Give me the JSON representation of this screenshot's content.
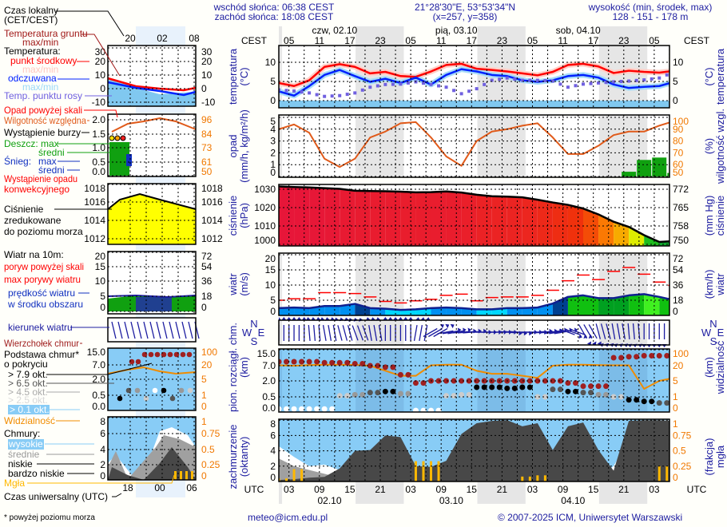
{
  "header": {
    "sunrise": "wschód słońca: 06:38 CEST",
    "sunset": "zachód słońca: 18:08 CEST",
    "coordinates": "21°28'30\"E, 53°53'34\"N",
    "grid_point": "(x=257,  y=358)",
    "elevation_label": "wysokość (min, środek, max)",
    "elevation_values": "128 - 151 - 178 m"
  },
  "time_axis": {
    "local_label": "CEST",
    "utc_label": "UTC",
    "local_hours": [
      "05",
      "11",
      "17",
      "23",
      "05",
      "11",
      "17",
      "23",
      "05",
      "11",
      "17",
      "23",
      "05"
    ],
    "local_days": [
      "czw, 02.10",
      "pią, 03.10",
      "sob, 04.10"
    ],
    "utc_hours": [
      "03",
      "09",
      "15",
      "21",
      "03",
      "09",
      "15",
      "21",
      "03",
      "09",
      "15",
      "21",
      "03"
    ],
    "utc_days": [
      "02.10",
      "03.10",
      "04.10"
    ]
  },
  "axis_titles": {
    "temp_left": [
      "temperatura",
      "(°C)"
    ],
    "temp_right": [
      "(°C)",
      "temperatura"
    ],
    "precip_left": [
      "opad",
      "(mm/h, kg/m²/h)"
    ],
    "precip_right": [
      "(%)",
      "wilgotność wzgl."
    ],
    "pressure_left": [
      "ciśnienie",
      "(hPa)"
    ],
    "pressure_right": [
      "(mm Hg)",
      "ciśnienie"
    ],
    "wind_left": [
      "wiatr",
      "(m/s)"
    ],
    "wind_right": [
      "(km/h)",
      "wiatr"
    ],
    "cloudbase_left": [
      "pion. rozciągł. chm.",
      "(km)"
    ],
    "cloudbase_right": [
      "(km)",
      "widzialność"
    ],
    "cloud_left": [
      "zachmurzenie",
      "(oktanty)"
    ],
    "cloud_right": [
      "(frakcja)",
      "mgła"
    ],
    "compass": {
      "n": "N",
      "w": "W",
      "e": "E",
      "s": "S"
    }
  },
  "ticks": {
    "temperature": {
      "left": [
        "10",
        "5",
        "0"
      ],
      "right": [
        "10",
        "5",
        "0"
      ]
    },
    "precip": {
      "left": [
        "5",
        "4",
        "3",
        "2",
        "1",
        "0"
      ],
      "right": [
        "100",
        "90",
        "80",
        "70",
        "60",
        "50"
      ]
    },
    "pressure": {
      "left": [
        "1030",
        "1020",
        "1010",
        "1000"
      ],
      "right": [
        "772",
        "765",
        "758",
        "750"
      ]
    },
    "wind": {
      "left": [
        "20",
        "15",
        "10",
        "5",
        "0"
      ],
      "right": [
        "72",
        "54",
        "36",
        "18",
        "0"
      ]
    },
    "cloudbase": {
      "left": [
        "15.0",
        "7.0",
        "2.0",
        "0.5",
        "0.0"
      ],
      "right": [
        "100",
        "20",
        "5",
        "1",
        "0"
      ]
    },
    "cloud": {
      "left": [
        "8",
        "6",
        "4",
        "2",
        "0"
      ],
      "right": [
        "1",
        "0.75",
        "0.5",
        "0.25",
        "0"
      ]
    }
  },
  "legend": {
    "local_time": [
      "Czas lokalny",
      "(CET/CEST)"
    ],
    "local_hours": [
      "20",
      "02",
      "08"
    ],
    "utc_time": "Czas uniwersalny (UTC)",
    "utc_hours": [
      "18",
      "00",
      "06"
    ],
    "ground_temp": [
      "Temperatura gruntu",
      "max/min"
    ],
    "temp_title": "Temperatura:",
    "temp_mid": "punkt środkowy",
    "temp_maxmin": "max/min",
    "feels_like": "odczuwana",
    "feels_maxmin": "max/min",
    "dew_point": "Temp. punktu rosy",
    "precip_over": "Opad powyżej skali",
    "humidity": "Wilgotność względna",
    "storm": "Wystąpienie burzy",
    "rain_max": "Deszcz: max",
    "rain_mean": "średni",
    "snow": "Śnieg:",
    "snow_max": "max",
    "snow_mean": "średni",
    "convective": [
      "Wystąpienie opadu",
      "konwekcyjnego"
    ],
    "pressure": [
      "Ciśnienie",
      "zredukowane",
      "do poziomu morza"
    ],
    "wind_title": "Wiatr na 10m:",
    "gust_over": "poryw powyżej skali",
    "gust_max": "max porywy wiatru",
    "wind_speed": [
      "prędkość wiatru",
      "w środku obszaru"
    ],
    "wind_dir": "kierunek wiatru",
    "cloud_top": "Wierzchołek chmur",
    "cloud_base": [
      "Podstawa chmur*",
      "o pokryciu"
    ],
    "okt": [
      "> 7.9 okt.",
      "> 6.5 okt.",
      "> 4.5 okt.",
      "> 2.5 okt.",
      "> 0.1 okt."
    ],
    "visibility": "Widzialność",
    "clouds_title": "Chmury:",
    "cloud_high": "wysokie",
    "cloud_mid": "średnie",
    "cloud_low": "niskie",
    "cloud_vlow": "bardzo niskie",
    "fog": "Mgła",
    "footnote": "* powyżej poziomu morza",
    "ticks": {
      "temperature": [
        "30",
        "20",
        "10",
        "0",
        "-10"
      ],
      "precip": [
        "2.0",
        "1.5",
        "1.0",
        "0.5",
        "0.0"
      ],
      "humidity": [
        "96",
        "84",
        "73",
        "61",
        "50"
      ],
      "pressure": [
        "1018",
        "1016",
        "1014",
        "1012"
      ],
      "wind": [
        "20",
        "15",
        "10",
        "5",
        "0"
      ],
      "wind_kmh": [
        "72",
        "54",
        "36",
        "18",
        "0"
      ],
      "cloudbase": [
        "15.0",
        "7.0",
        "2.0",
        "0.5",
        "0.0"
      ],
      "visibility": [
        "100",
        "20",
        "5",
        "1",
        "0"
      ],
      "cloud": [
        "8",
        "6",
        "4",
        "2",
        "0"
      ],
      "fog": [
        "1",
        "0.75",
        "0.5",
        "0.25",
        "0"
      ]
    }
  },
  "footer": {
    "email": "meteo@icm.edu.pl",
    "copyright": "© 2007-2025 ICM, Uniwersytet Warszawski"
  },
  "colors": {
    "text_navy": "#1c1ca0",
    "temp_mid": "#ff0000",
    "feels_like": "#0022ff",
    "dew_point": "#7060e0",
    "humidity": "#e05a1a",
    "rain": "#10a010",
    "gust": "#ff0000",
    "visibility": "#f08c00",
    "cloud_top": "#a02020",
    "fog": "#ffb800",
    "sky": "#88ccf6",
    "night_band": "#e6e6e6"
  },
  "chart_data": {
    "type": "line",
    "x": [
      "02.10 03:00",
      "02.10 06:00",
      "02.10 09:00",
      "02.10 12:00",
      "02.10 15:00",
      "02.10 18:00",
      "02.10 21:00",
      "03.10 00:00",
      "03.10 03:00",
      "03.10 06:00",
      "03.10 09:00",
      "03.10 12:00",
      "03.10 15:00",
      "03.10 18:00",
      "03.10 21:00",
      "04.10 00:00",
      "04.10 03:00",
      "04.10 06:00",
      "04.10 09:00",
      "04.10 12:00",
      "04.10 15:00",
      "04.10 18:00",
      "04.10 21:00",
      "05.10 00:00",
      "05.10 03:00",
      "05.10 06:00",
      "05.10 09:00"
    ],
    "time_zone": "CEST",
    "temperature_c": [
      4.6,
      3.8,
      5.3,
      8.8,
      9.5,
      8.8,
      7.1,
      7.5,
      6.4,
      6.2,
      7.6,
      9.3,
      9.6,
      8.3,
      8.0,
      7.6,
      7.1,
      6.6,
      7.5,
      9.3,
      9.6,
      8.9,
      7.2,
      7.8,
      7.5,
      7.3,
      7.8
    ],
    "feels_like_c": [
      2.4,
      1.3,
      3.8,
      6.7,
      8.0,
      6.4,
      4.9,
      5.7,
      4.6,
      6.0,
      4.2,
      6.7,
      8.2,
      7.6,
      6.7,
      6.4,
      5.3,
      4.9,
      5.3,
      6.4,
      6.7,
      6.0,
      4.2,
      3.3,
      3.6,
      3.8,
      4.9
    ],
    "dew_point_c": [
      2.8,
      2.5,
      2.0,
      1.1,
      1.3,
      2.0,
      3.5,
      4.2,
      4.3,
      4.9,
      4.2,
      3.5,
      1.8,
      3.1,
      5.3,
      5.9,
      5.3,
      5.3,
      5.1,
      3.5,
      4.3,
      4.6,
      4.9,
      5.1,
      5.4,
      5.9,
      7.5
    ],
    "relative_humidity_pct": [
      90,
      94,
      87,
      65,
      58,
      65,
      83,
      88,
      95,
      96,
      83,
      67,
      59,
      80,
      88,
      90,
      93,
      95,
      83,
      69,
      69,
      76,
      85,
      88,
      88,
      93,
      97
    ],
    "precip_mm_h": [
      0,
      0,
      0,
      0,
      0,
      0,
      0,
      0,
      0,
      0,
      0,
      0,
      0,
      0,
      0,
      0,
      0,
      0,
      0,
      0,
      0,
      0,
      0,
      0.4,
      1.4,
      1.6,
      0.3
    ],
    "pressure_hpa": [
      1031.5,
      1031.2,
      1031,
      1030.6,
      1030.2,
      1029.2,
      1029,
      1028.9,
      1028.7,
      1028.3,
      1028.4,
      1028.8,
      1028.2,
      1027,
      1026.2,
      1026,
      1025.6,
      1024.3,
      1022.8,
      1021.5,
      1019.5,
      1016.3,
      1012.3,
      1009.5,
      1005,
      1001.3,
      1001.8
    ],
    "wind_speed_ms": [
      2.4,
      2.6,
      2.4,
      3.1,
      3.1,
      3.8,
      2.4,
      2.2,
      1.8,
      2.0,
      2.4,
      2.6,
      2.4,
      2.0,
      2.0,
      2.4,
      2.4,
      2.6,
      3.9,
      6.1,
      6.6,
      5.7,
      5.7,
      6.6,
      7.0,
      6.1,
      5.0
    ],
    "wind_gust_ms": [
      5.0,
      5.5,
      5.5,
      7.5,
      7.5,
      7.2,
      6.1,
      4.6,
      4.1,
      4.8,
      5.3,
      6.6,
      7.0,
      4.8,
      5.9,
      6.1,
      6.1,
      6.6,
      8.3,
      11.4,
      13.3,
      11.8,
      14.5,
      15.8,
      13.6,
      11.0,
      9.9
    ],
    "wind_direction_deg": [
      0,
      0,
      355,
      350,
      345,
      340,
      350,
      0,
      0,
      10,
      60,
      80,
      85,
      90,
      90,
      95,
      90,
      85,
      80,
      110,
      150,
      165,
      170,
      175,
      180,
      180,
      200
    ],
    "cloud_top_km": [
      9,
      9,
      9,
      8.5,
      8.5,
      8,
      7,
      6.5,
      4,
      1.8,
      2.0,
      2.0,
      2.0,
      2.0,
      2.0,
      2.0,
      2.0,
      2.0,
      2.0,
      1.8,
      1.5,
      1.5,
      11,
      11.5,
      12,
      12,
      11.5
    ],
    "cloud_base_km": [
      0.1,
      0.1,
      0.1,
      0.1,
      0.6,
      0.7,
      0.9,
      1.0,
      0.8,
      0.05,
      0.05,
      0.6,
      0.7,
      1.4,
      1.4,
      1.3,
      1.4,
      0.5,
      1.2,
      1.0,
      0.9,
      0.7,
      0.5,
      0.4,
      0.35,
      0.3,
      0.5
    ],
    "cloud_base_cover_okt": [
      1,
      1,
      1,
      1,
      3,
      5,
      7,
      8,
      6,
      2,
      2,
      3,
      4,
      8,
      8,
      8,
      8,
      3,
      7,
      8,
      7,
      5,
      4,
      8,
      8,
      7,
      6
    ],
    "visibility_km": [
      22,
      20,
      23,
      25,
      25,
      24,
      20,
      15,
      10,
      10,
      22,
      25,
      25,
      15,
      12,
      12,
      10,
      8,
      20,
      25,
      25,
      23,
      22,
      22,
      3,
      5,
      8
    ],
    "cloud_high_okt": [
      4.6,
      3.2,
      2,
      2.2,
      1.5,
      1.2,
      1.3,
      1,
      1.5,
      2,
      0.5,
      2,
      4,
      3,
      1,
      0.5,
      0.3,
      0.3,
      0.5,
      0.3,
      0.3,
      0.5,
      2,
      5.5,
      8,
      8,
      8
    ],
    "cloud_mid_okt": [
      3,
      2,
      1.5,
      1,
      0.5,
      0.5,
      0.5,
      0.5,
      1,
      1,
      0.5,
      1,
      1.5,
      1,
      0.5,
      0.5,
      0.3,
      0.3,
      0.3,
      0.3,
      0.3,
      0.3,
      1,
      6,
      8,
      6,
      8
    ],
    "cloud_low_okt": [
      0.2,
      0.3,
      0.5,
      0.6,
      1.7,
      4,
      4.1,
      6,
      5.8,
      2,
      1.9,
      2.7,
      6.2,
      7.6,
      7.9,
      8,
      7.2,
      7.6,
      4.1,
      7.2,
      7.7,
      4.1,
      1.4,
      7.9,
      8,
      8,
      7.9
    ],
    "fog_fraction": [
      0.05,
      0.2,
      0,
      0,
      0,
      0,
      0,
      0,
      0,
      0.33,
      0.33,
      0,
      0,
      0,
      0,
      0,
      0.08,
      0.1,
      0,
      0,
      0,
      0,
      0,
      0,
      0,
      0.25,
      0.3
    ]
  }
}
